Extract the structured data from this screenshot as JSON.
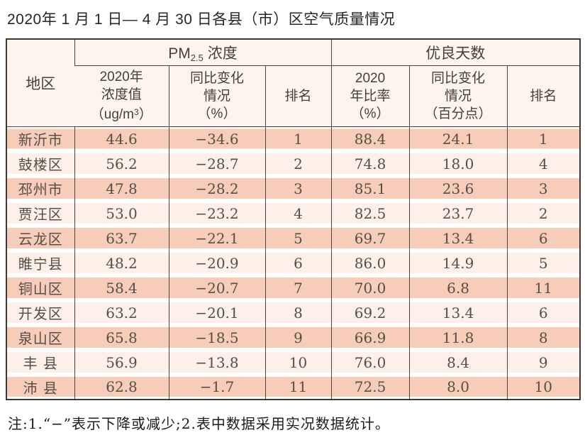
{
  "title": "2020年 1 月 1 日— 4 月 30 日各县（市）区空气质量情况",
  "table": {
    "region_header": "地区",
    "group_pm": {
      "main": "PM",
      "sub": "2.5",
      "rest": " 浓度"
    },
    "group_days": "优良天数",
    "sub_headers": {
      "pm_value": {
        "l1": "2020年",
        "l2": "浓度值",
        "l3_pre": "（ug/m",
        "l3_sup": "3",
        "l3_post": "）"
      },
      "pm_change": {
        "l1": "同比变化",
        "l2": "情况",
        "l3": "（%）"
      },
      "pm_rank": "排名",
      "days_ratio": {
        "l1": "2020",
        "l2": "年比率",
        "l3": "（%）"
      },
      "days_change": {
        "l1": "同比变化",
        "l2": "情况",
        "l3": "（百分点）"
      },
      "days_rank": "排名"
    },
    "rows": [
      {
        "region": "新沂市",
        "pm_value": "44.6",
        "pm_change": "−34.6",
        "pm_rank": "1",
        "days_ratio": "88.4",
        "days_change": "24.1",
        "days_rank": "1"
      },
      {
        "region": "鼓楼区",
        "pm_value": "56.2",
        "pm_change": "−28.7",
        "pm_rank": "2",
        "days_ratio": "74.8",
        "days_change": "18.0",
        "days_rank": "4"
      },
      {
        "region": "邳州市",
        "pm_value": "47.8",
        "pm_change": "−28.2",
        "pm_rank": "3",
        "days_ratio": "85.1",
        "days_change": "23.6",
        "days_rank": "3"
      },
      {
        "region": "贾汪区",
        "pm_value": "53.0",
        "pm_change": "−23.2",
        "pm_rank": "4",
        "days_ratio": "82.5",
        "days_change": "23.7",
        "days_rank": "2"
      },
      {
        "region": "云龙区",
        "pm_value": "63.7",
        "pm_change": "−22.1",
        "pm_rank": "5",
        "days_ratio": "69.7",
        "days_change": "13.4",
        "days_rank": "6"
      },
      {
        "region": "睢宁县",
        "pm_value": "48.2",
        "pm_change": "−20.9",
        "pm_rank": "6",
        "days_ratio": "86.0",
        "days_change": "14.9",
        "days_rank": "5"
      },
      {
        "region": "铜山区",
        "pm_value": "58.4",
        "pm_change": "−20.7",
        "pm_rank": "7",
        "days_ratio": "70.0",
        "days_change": "6.8",
        "days_rank": "11"
      },
      {
        "region": "开发区",
        "pm_value": "63.2",
        "pm_change": "−20.1",
        "pm_rank": "8",
        "days_ratio": "69.2",
        "days_change": "13.4",
        "days_rank": "6"
      },
      {
        "region": "泉山区",
        "pm_value": "65.8",
        "pm_change": "−18.5",
        "pm_rank": "9",
        "days_ratio": "66.9",
        "days_change": "11.8",
        "days_rank": "8"
      },
      {
        "region": "丰 县",
        "pm_value": "56.9",
        "pm_change": "−13.8",
        "pm_rank": "10",
        "days_ratio": "76.0",
        "days_change": "8.4",
        "days_rank": "9"
      },
      {
        "region": "沛 县",
        "pm_value": "62.8",
        "pm_change": "−1.7",
        "pm_rank": "11",
        "days_ratio": "72.5",
        "days_change": "8.0",
        "days_rank": "10"
      }
    ]
  },
  "footnote": "注:1.“−”表示下降或减少;2.表中数据采用实况数据统计。",
  "colors": {
    "row_odd": "#f7ccb8",
    "row_even": "#fcf0e9",
    "header_bg": "#fdf4ec",
    "border_dark": "#3f3733",
    "text_data": "#564e48"
  }
}
